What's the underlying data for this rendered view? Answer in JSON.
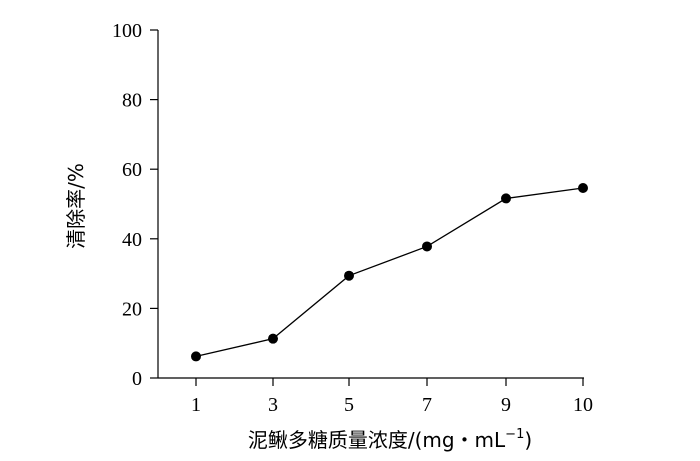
{
  "chart_data": {
    "type": "line",
    "xlabel": "泥鳅多糖质量浓度/(mg・mL",
    "xlabel_sup": "−1",
    "xlabel_close": ")",
    "ylabel": "清除率/%",
    "x_ticks": [
      "1",
      "3",
      "5",
      "7",
      "9",
      "10"
    ],
    "y_ticks": [
      "0",
      "20",
      "40",
      "60",
      "80",
      "100"
    ],
    "ylim": [
      0,
      100
    ],
    "grid": false,
    "series": [
      {
        "x": [
          "1",
          "3",
          "5",
          "7",
          "9",
          "10"
        ],
        "values": [
          6.2,
          11.3,
          29.4,
          37.8,
          51.6,
          54.6
        ]
      }
    ],
    "colors": {
      "line": "#000000",
      "marker": "#000000"
    }
  }
}
